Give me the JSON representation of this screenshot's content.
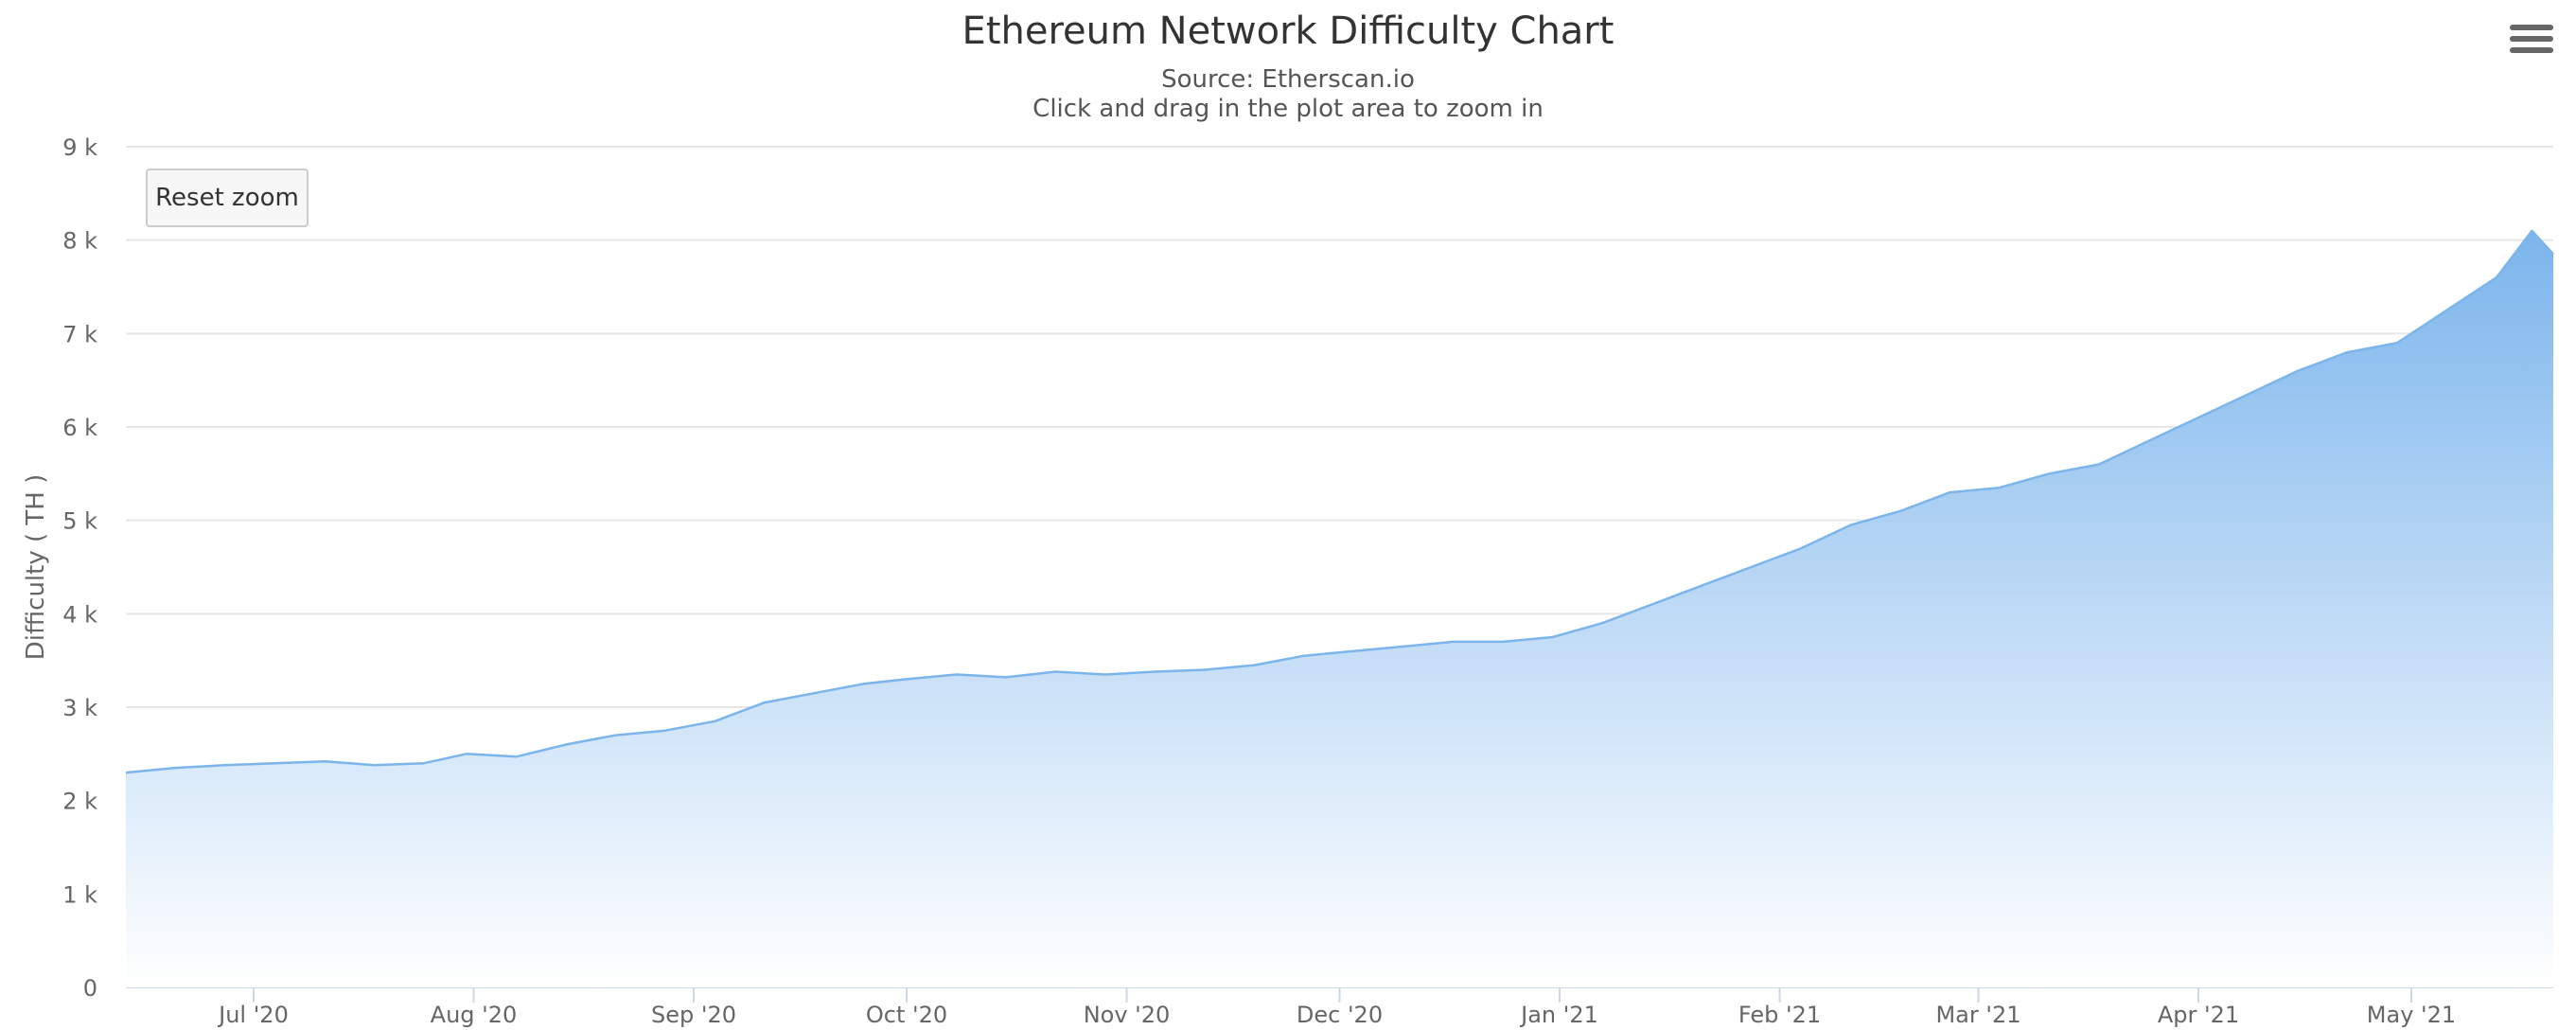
{
  "header": {
    "title": "Ethereum Network Difficulty Chart",
    "subtitle_source": "Source: Etherscan.io",
    "subtitle_hint": "Click and drag in the plot area to zoom in",
    "reset_zoom_label": "Reset zoom",
    "menu_icon": "hamburger-menu-icon"
  },
  "chart_data": {
    "type": "area",
    "title": "Ethereum Network Difficulty Chart",
    "subtitle": "Source: Etherscan.io",
    "xlabel": "",
    "ylabel": "Difficulty ( TH )",
    "ylim": [
      0,
      9000
    ],
    "yticks": [
      0,
      1000,
      2000,
      3000,
      4000,
      5000,
      6000,
      7000,
      8000,
      9000
    ],
    "ytick_labels": [
      "0",
      "1 k",
      "2 k",
      "3 k",
      "4 k",
      "5 k",
      "6 k",
      "7 k",
      "8 k",
      "9 k"
    ],
    "xlim": [
      "2020-06-13",
      "2021-05-21"
    ],
    "xticks": [
      "2020-07-01",
      "2020-08-01",
      "2020-09-01",
      "2020-10-01",
      "2020-11-01",
      "2020-12-01",
      "2021-01-01",
      "2021-02-01",
      "2021-03-01",
      "2021-04-01",
      "2021-05-01"
    ],
    "xtick_labels": [
      "Jul '20",
      "Aug '20",
      "Sep '20",
      "Oct '20",
      "Nov '20",
      "Dec '20",
      "Jan '21",
      "Feb '21",
      "Mar '21",
      "Apr '21",
      "May '21"
    ],
    "grid": true,
    "legend": "none",
    "colors": {
      "line": "#7cb5ec",
      "fill_top": "#7cb5ec",
      "fill_bottom": "#ffffff",
      "grid": "#e6e6e6",
      "axis": "#ccd6eb"
    },
    "series": [
      {
        "x": [
          "2020-06-13",
          "2020-06-20",
          "2020-06-27",
          "2020-07-04",
          "2020-07-11",
          "2020-07-18",
          "2020-07-25",
          "2020-07-31",
          "2020-08-07",
          "2020-08-14",
          "2020-08-21",
          "2020-08-28",
          "2020-09-04",
          "2020-09-11",
          "2020-09-18",
          "2020-09-25",
          "2020-10-01",
          "2020-10-08",
          "2020-10-15",
          "2020-10-22",
          "2020-10-29",
          "2020-11-05",
          "2020-11-12",
          "2020-11-19",
          "2020-11-26",
          "2020-12-03",
          "2020-12-10",
          "2020-12-17",
          "2020-12-24",
          "2020-12-31",
          "2021-01-07",
          "2021-01-14",
          "2021-01-21",
          "2021-01-28",
          "2021-02-04",
          "2021-02-11",
          "2021-02-18",
          "2021-02-25",
          "2021-03-04",
          "2021-03-11",
          "2021-03-18",
          "2021-03-25",
          "2021-04-01",
          "2021-04-08",
          "2021-04-15",
          "2021-04-22",
          "2021-04-29",
          "2021-05-06",
          "2021-05-13",
          "2021-05-18",
          "2021-05-21"
        ],
        "values": [
          2300,
          2350,
          2380,
          2400,
          2420,
          2380,
          2400,
          2500,
          2470,
          2600,
          2700,
          2750,
          2850,
          3050,
          3150,
          3250,
          3300,
          3350,
          3320,
          3380,
          3350,
          3380,
          3400,
          3450,
          3550,
          3600,
          3650,
          3700,
          3700,
          3750,
          3900,
          4100,
          4300,
          4500,
          4700,
          4950,
          5100,
          5300,
          5350,
          5500,
          5600,
          5850,
          6100,
          6350,
          6600,
          6800,
          6900,
          7250,
          7600,
          8100,
          7850
        ]
      }
    ]
  }
}
